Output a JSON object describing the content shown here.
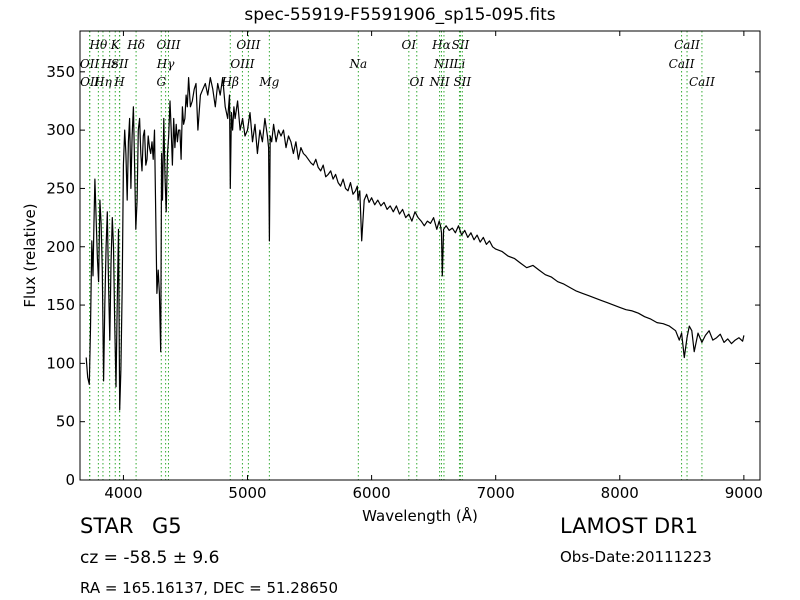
{
  "chart_data": {
    "type": "line",
    "title": "spec-55919-F5591906_sp15-095.fits",
    "xlabel": "Wavelength (Å)",
    "ylabel": "Flux (relative)",
    "xlim": [
      3650,
      9130
    ],
    "ylim": [
      0,
      385
    ],
    "xticks": [
      4000,
      5000,
      6000,
      7000,
      8000,
      9000
    ],
    "yticks": [
      0,
      50,
      100,
      150,
      200,
      250,
      300,
      350
    ],
    "grid": false,
    "line_color": "#000000",
    "marker_line_color": "#33aa33",
    "series": [
      {
        "name": "",
        "x": [
          3700,
          3712,
          3725,
          3735,
          3745,
          3755,
          3762,
          3770,
          3780,
          3790,
          3800,
          3810,
          3820,
          3830,
          3840,
          3850,
          3860,
          3870,
          3880,
          3890,
          3900,
          3910,
          3920,
          3930,
          3940,
          3950,
          3960,
          3970,
          3980,
          3990,
          4000,
          4010,
          4020,
          4030,
          4040,
          4050,
          4060,
          4070,
          4080,
          4090,
          4100,
          4110,
          4120,
          4130,
          4140,
          4150,
          4160,
          4170,
          4180,
          4190,
          4200,
          4210,
          4220,
          4230,
          4240,
          4250,
          4260,
          4270,
          4280,
          4290,
          4300,
          4308,
          4315,
          4325,
          4335,
          4345,
          4355,
          4365,
          4375,
          4385,
          4395,
          4405,
          4415,
          4425,
          4435,
          4445,
          4455,
          4465,
          4475,
          4485,
          4495,
          4505,
          4515,
          4525,
          4540,
          4555,
          4570,
          4585,
          4600,
          4620,
          4640,
          4660,
          4680,
          4700,
          4720,
          4740,
          4760,
          4780,
          4800,
          4820,
          4840,
          4855,
          4861,
          4870,
          4880,
          4890,
          4900,
          4920,
          4940,
          4960,
          4980,
          5000,
          5020,
          5040,
          5060,
          5080,
          5100,
          5120,
          5140,
          5160,
          5170,
          5176,
          5183,
          5195,
          5210,
          5230,
          5250,
          5270,
          5290,
          5310,
          5330,
          5350,
          5370,
          5390,
          5410,
          5430,
          5450,
          5470,
          5490,
          5510,
          5530,
          5550,
          5570,
          5590,
          5610,
          5630,
          5650,
          5670,
          5690,
          5710,
          5730,
          5750,
          5770,
          5790,
          5810,
          5830,
          5850,
          5870,
          5885,
          5890,
          5896,
          5905,
          5920,
          5940,
          5960,
          5980,
          6000,
          6025,
          6050,
          6075,
          6100,
          6125,
          6150,
          6175,
          6200,
          6225,
          6250,
          6275,
          6300,
          6325,
          6350,
          6375,
          6400,
          6425,
          6450,
          6475,
          6500,
          6525,
          6545,
          6555,
          6563,
          6570,
          6580,
          6600,
          6625,
          6650,
          6675,
          6700,
          6725,
          6750,
          6775,
          6800,
          6825,
          6850,
          6875,
          6900,
          6925,
          6950,
          6975,
          7000,
          7050,
          7100,
          7150,
          7200,
          7250,
          7300,
          7350,
          7400,
          7450,
          7500,
          7550,
          7600,
          7650,
          7700,
          7750,
          7800,
          7850,
          7900,
          7950,
          8000,
          8050,
          8100,
          8150,
          8200,
          8250,
          8300,
          8350,
          8400,
          8450,
          8480,
          8498,
          8520,
          8542,
          8560,
          8580,
          8600,
          8630,
          8662,
          8690,
          8720,
          8750,
          8780,
          8810,
          8840,
          8870,
          8900,
          8930,
          8960,
          8990,
          9000
        ],
        "values": [
          105,
          88,
          82,
          130,
          205,
          175,
          218,
          258,
          225,
          190,
          170,
          240,
          220,
          180,
          85,
          150,
          200,
          230,
          170,
          120,
          185,
          225,
          200,
          135,
          80,
          150,
          215,
          60,
          95,
          165,
          270,
          300,
          280,
          240,
          290,
          310,
          250,
          295,
          320,
          270,
          215,
          240,
          300,
          310,
          280,
          265,
          295,
          300,
          270,
          275,
          295,
          285,
          280,
          290,
          275,
          300,
          230,
          160,
          180,
          160,
          110,
          280,
          240,
          310,
          260,
          230,
          280,
          295,
          325,
          300,
          270,
          310,
          285,
          305,
          290,
          300,
          300,
          275,
          320,
          305,
          310,
          330,
          320,
          345,
          320,
          325,
          335,
          340,
          300,
          330,
          335,
          340,
          330,
          345,
          335,
          320,
          340,
          330,
          345,
          320,
          310,
          330,
          250,
          315,
          300,
          320,
          310,
          325,
          300,
          310,
          295,
          300,
          315,
          290,
          305,
          280,
          300,
          290,
          310,
          295,
          285,
          205,
          295,
          290,
          305,
          290,
          300,
          295,
          300,
          285,
          295,
          290,
          280,
          290,
          275,
          285,
          280,
          278,
          275,
          272,
          270,
          275,
          268,
          265,
          270,
          260,
          262,
          265,
          258,
          262,
          255,
          252,
          258,
          250,
          248,
          255,
          245,
          248,
          252,
          240,
          244,
          248,
          205,
          240,
          245,
          238,
          242,
          236,
          240,
          235,
          238,
          232,
          235,
          230,
          235,
          228,
          232,
          225,
          228,
          222,
          230,
          225,
          222,
          218,
          222,
          220,
          225,
          215,
          222,
          218,
          212,
          175,
          215,
          218,
          214,
          216,
          212,
          218,
          210,
          214,
          208,
          212,
          206,
          210,
          204,
          208,
          202,
          205,
          200,
          198,
          196,
          192,
          190,
          186,
          182,
          184,
          180,
          176,
          174,
          170,
          168,
          165,
          162,
          160,
          158,
          156,
          154,
          152,
          150,
          148,
          146,
          145,
          143,
          140,
          138,
          135,
          134,
          132,
          128,
          120,
          126,
          105,
          122,
          132,
          128,
          110,
          126,
          118,
          124,
          128,
          120,
          122,
          125,
          118,
          121,
          117,
          120,
          122,
          119,
          124
        ]
      }
    ],
    "line_markers": [
      {
        "label": "Hθ",
        "wl": 3798,
        "pos": "top",
        "row": 0
      },
      {
        "label": "OII",
        "wl": 3727,
        "pos": "top",
        "row": 1
      },
      {
        "label": "OII",
        "wl": 3729,
        "pos": "top",
        "row": 2
      },
      {
        "label": "Hη",
        "wl": 3835,
        "pos": "top",
        "row": 2
      },
      {
        "label": "Hε",
        "wl": 3889,
        "pos": "top",
        "row": 1
      },
      {
        "label": "K",
        "wl": 3934,
        "pos": "top",
        "row": 0
      },
      {
        "label": "SII",
        "wl": 3970,
        "pos": "top",
        "row": 1
      },
      {
        "label": "H",
        "wl": 3968,
        "pos": "top",
        "row": 2
      },
      {
        "label": "Hδ",
        "wl": 4102,
        "pos": "top",
        "row": 0
      },
      {
        "label": "OIII",
        "wl": 4363,
        "pos": "top",
        "row": 0
      },
      {
        "label": "Hγ",
        "wl": 4340,
        "pos": "top",
        "row": 1
      },
      {
        "label": "G",
        "wl": 4305,
        "pos": "top",
        "row": 2
      },
      {
        "label": "Hβ",
        "wl": 4861,
        "pos": "top",
        "row": 2
      },
      {
        "label": "OIII",
        "wl": 4959,
        "pos": "top",
        "row": 1
      },
      {
        "label": "OIII",
        "wl": 5007,
        "pos": "top",
        "row": 0
      },
      {
        "label": "Mg",
        "wl": 5176,
        "pos": "top",
        "row": 2
      },
      {
        "label": "Na",
        "wl": 5893,
        "pos": "top",
        "row": 1
      },
      {
        "label": "OI",
        "wl": 6300,
        "pos": "top",
        "row": 0
      },
      {
        "label": "OI",
        "wl": 6364,
        "pos": "top",
        "row": 2
      },
      {
        "label": "Hα",
        "wl": 6563,
        "pos": "top",
        "row": 0
      },
      {
        "label": "NII",
        "wl": 6583,
        "pos": "top",
        "row": 1
      },
      {
        "label": "NII",
        "wl": 6548,
        "pos": "top",
        "row": 2
      },
      {
        "label": "SII",
        "wl": 6716,
        "pos": "top",
        "row": 0
      },
      {
        "label": "Li",
        "wl": 6708,
        "pos": "top",
        "row": 1
      },
      {
        "label": "SII",
        "wl": 6731,
        "pos": "top",
        "row": 2
      },
      {
        "label": "CaII",
        "wl": 8542,
        "pos": "top",
        "row": 0
      },
      {
        "label": "CaII",
        "wl": 8498,
        "pos": "top",
        "row": 1
      },
      {
        "label": "CaII",
        "wl": 8662,
        "pos": "top",
        "row": 2
      }
    ]
  },
  "footer": {
    "object_type": "STAR",
    "subclass": "G5",
    "redshift": "cz = -58.5 ± 9.6",
    "coordinates": "RA = 165.16137, DEC = 51.28650",
    "survey": "LAMOST DR1",
    "obs_date": "Obs-Date:20111223"
  }
}
